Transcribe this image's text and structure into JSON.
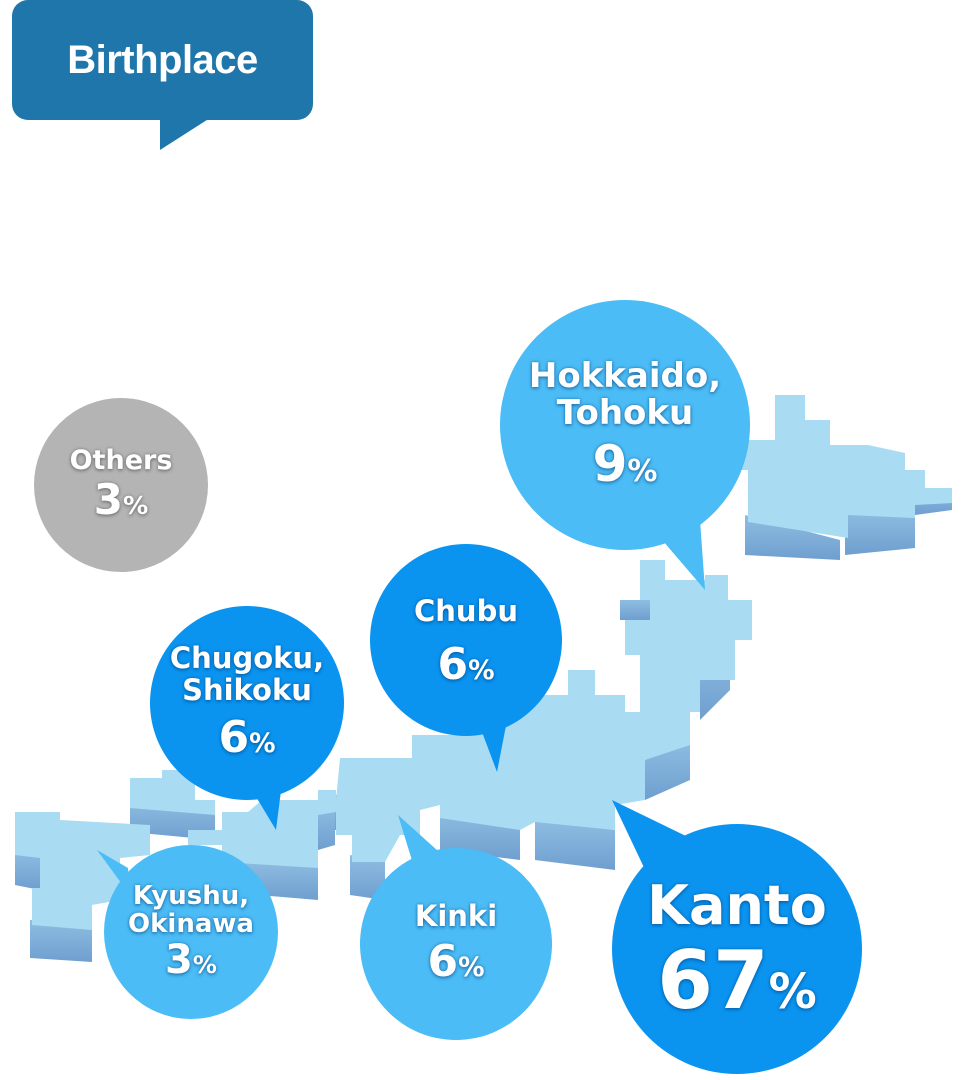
{
  "title": "Birthplace",
  "chart_data": {
    "type": "pie",
    "title": "Birthplace",
    "unit": "%",
    "categories": [
      "Kanto",
      "Hokkaido, Tohoku",
      "Chubu",
      "Chugoku, Shikoku",
      "Kinki",
      "Kyushu, Okinawa",
      "Others"
    ],
    "values": [
      67,
      9,
      6,
      6,
      6,
      3,
      3
    ],
    "labels": {
      "others": {
        "name": "Others",
        "value": "3",
        "sign": "%"
      },
      "hokkaido": {
        "name_line1": "Hokkaido,",
        "name_line2": "Tohoku",
        "value": "9",
        "sign": "%"
      },
      "chubu": {
        "name": "Chubu",
        "value": "6",
        "sign": "%"
      },
      "chugoku": {
        "name_line1": "Chugoku,",
        "name_line2": "Shikoku",
        "value": "6",
        "sign": "%"
      },
      "kyushu": {
        "name_line1": "Kyushu,",
        "name_line2": "Okinawa",
        "value": "3",
        "sign": "%"
      },
      "kinki": {
        "name": "Kinki",
        "value": "6",
        "sign": "%"
      },
      "kanto": {
        "name": "Kanto",
        "value": "67",
        "sign": "%"
      }
    },
    "colors": {
      "title_box": "#1f76ab",
      "major_region": "#0a94f0",
      "minor_region": "#4bbcf5",
      "others": "#b4b4b4",
      "map_top": "#a9dcf2",
      "map_side": "#7fb1db"
    }
  }
}
